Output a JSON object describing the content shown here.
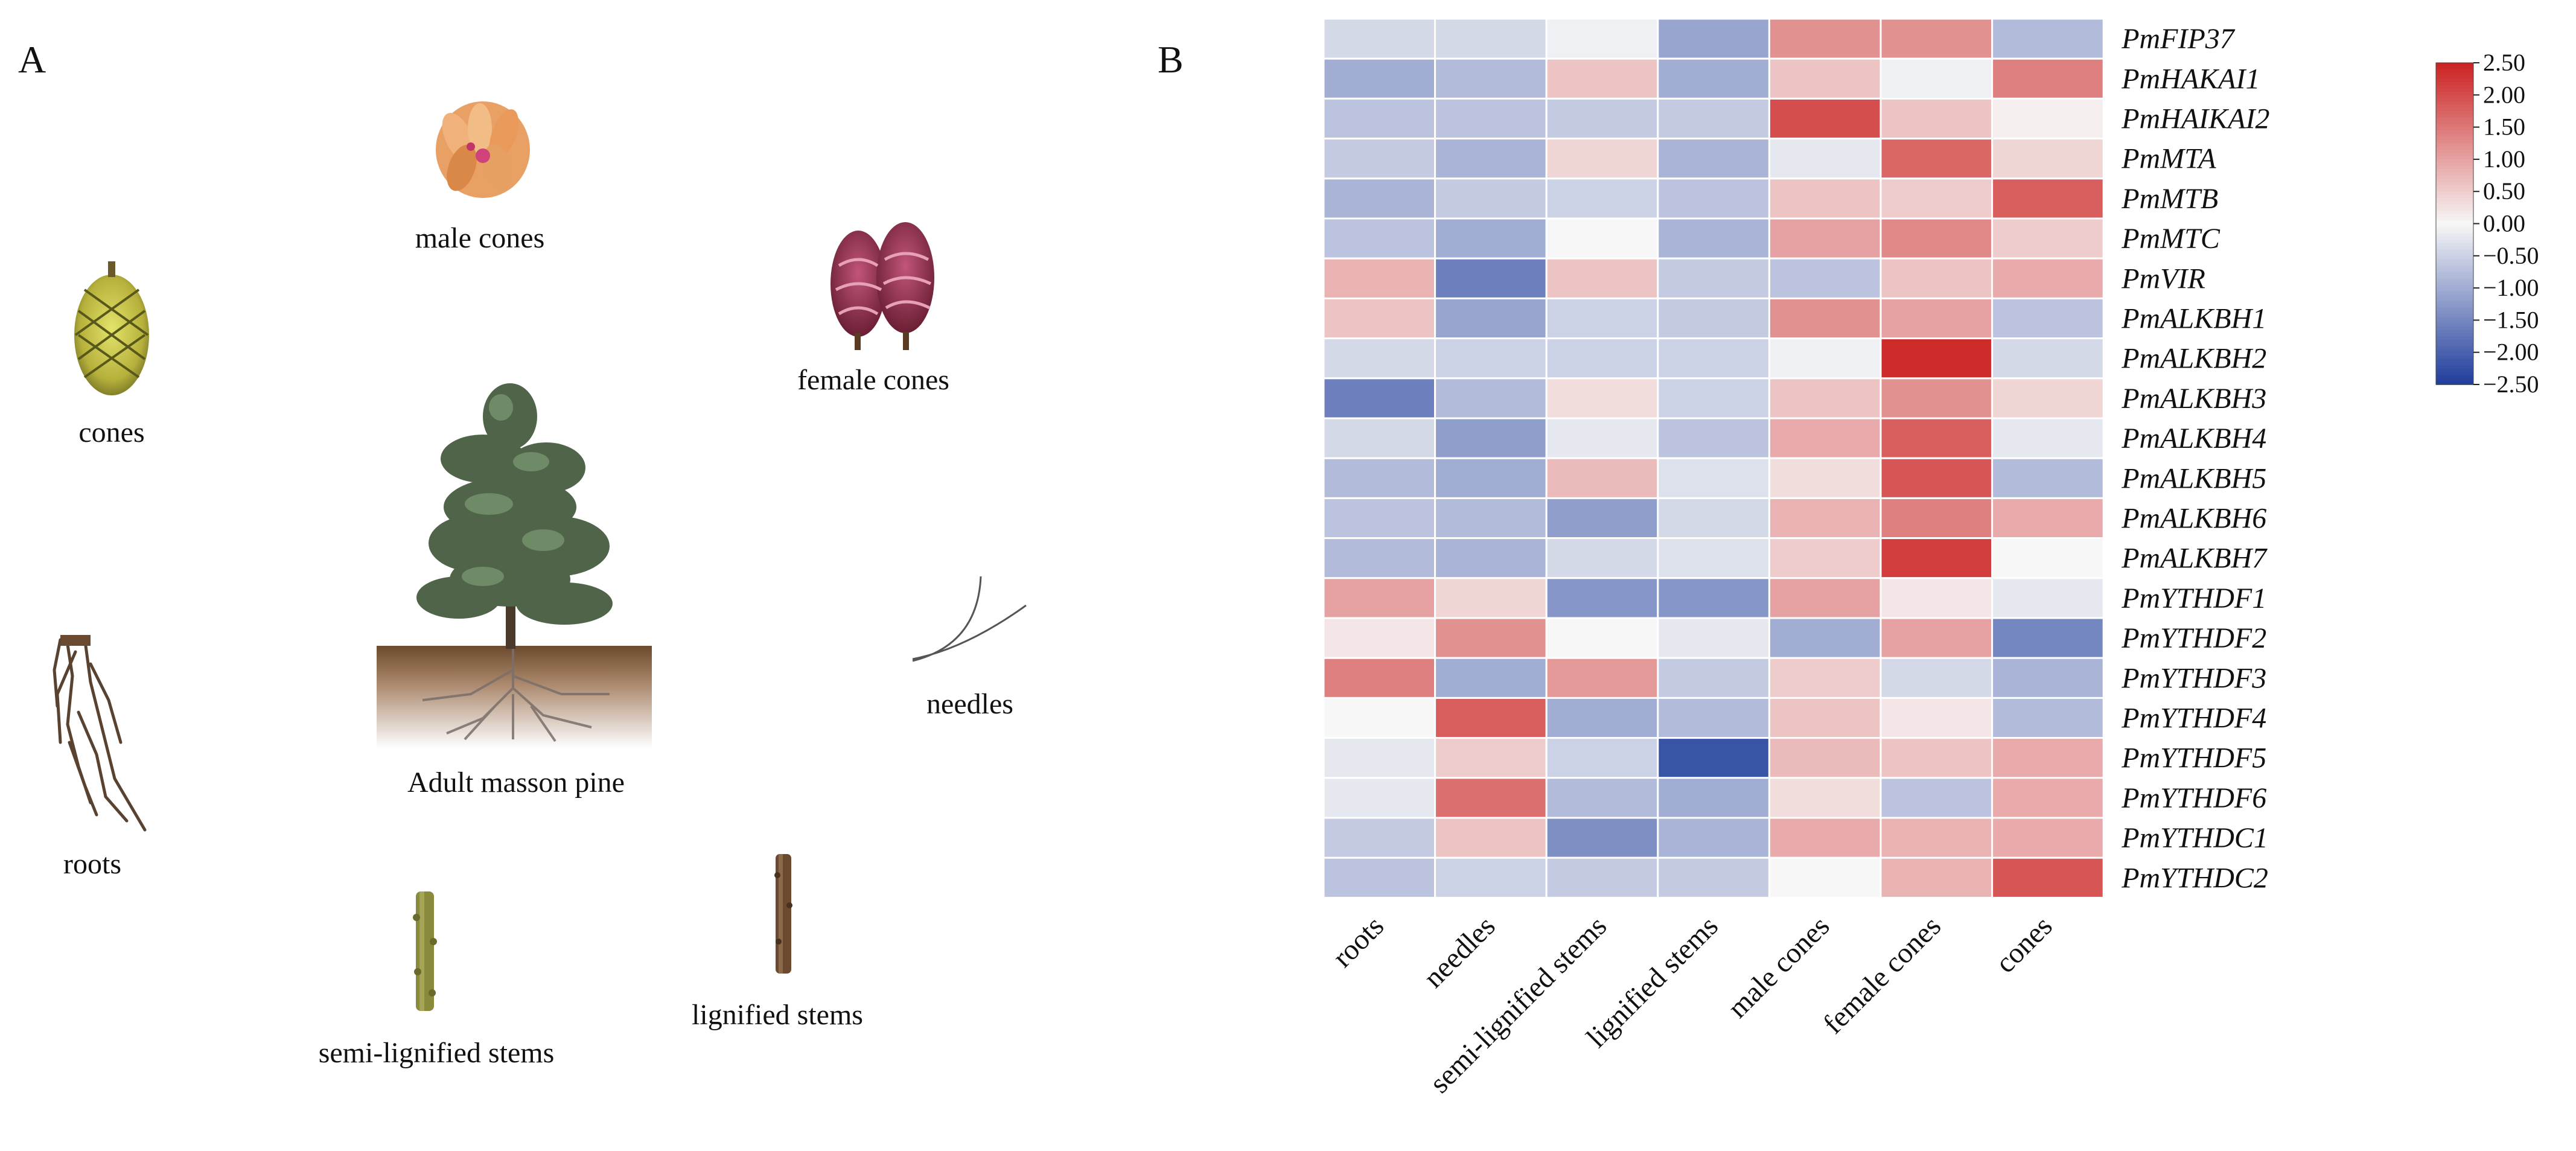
{
  "panels": {
    "a": "A",
    "b": "B"
  },
  "panel_a": {
    "labels": {
      "male_cones": "male cones",
      "female_cones": "female cones",
      "cones": "cones",
      "adult_pine": "Adult masson pine",
      "roots": "roots",
      "needles": "needles",
      "semi_lignified_stems": "semi-lignified stems",
      "lignified_stems": "lignified stems"
    }
  },
  "chart_data": {
    "type": "heatmap",
    "title": "",
    "columns": [
      "roots",
      "needles",
      "semi-lignified stems",
      "lignified stems",
      "male cones",
      "female cones",
      "cones"
    ],
    "rows": [
      "PmFIP37",
      "PmHAKAI1",
      "PmHAIKAI2",
      "PmMTA",
      "PmMTB",
      "PmMTC",
      "PmVIR",
      "PmALKBH1",
      "PmALKBH2",
      "PmALKBH3",
      "PmALKBH4",
      "PmALKBH5",
      "PmALKBH6",
      "PmALKBH7",
      "PmYTHDF1",
      "PmYTHDF2",
      "PmYTHDF3",
      "PmYTHDF4",
      "PmYTHDF5",
      "PmYTHDF6",
      "PmYTHDC1",
      "PmYTHDC2"
    ],
    "values": [
      [
        -0.4,
        -0.4,
        -0.1,
        -1.1,
        1.2,
        1.2,
        -0.8
      ],
      [
        -1.0,
        -0.8,
        0.6,
        -1.0,
        0.6,
        -0.1,
        1.4
      ],
      [
        -0.7,
        -0.7,
        -0.6,
        -0.6,
        2.0,
        0.6,
        0.1
      ],
      [
        -0.6,
        -0.9,
        0.4,
        -0.9,
        -0.2,
        1.7,
        0.4
      ],
      [
        -0.9,
        -0.6,
        -0.5,
        -0.7,
        0.6,
        0.5,
        1.8
      ],
      [
        -0.7,
        -1.0,
        0.0,
        -0.9,
        1.0,
        1.3,
        0.5
      ],
      [
        0.8,
        -1.6,
        0.6,
        -0.6,
        -0.7,
        0.6,
        0.9
      ],
      [
        0.6,
        -1.1,
        -0.5,
        -0.6,
        1.2,
        1.0,
        -0.7
      ],
      [
        -0.4,
        -0.5,
        -0.5,
        -0.5,
        -0.1,
        2.4,
        -0.4
      ],
      [
        -1.6,
        -0.8,
        0.3,
        -0.5,
        0.6,
        1.2,
        0.4
      ],
      [
        -0.4,
        -1.2,
        -0.2,
        -0.7,
        0.9,
        1.8,
        -0.2
      ],
      [
        -0.8,
        -1.0,
        0.7,
        -0.3,
        0.3,
        1.9,
        -0.8
      ],
      [
        -0.7,
        -0.8,
        -1.2,
        -0.4,
        0.8,
        1.4,
        0.9
      ],
      [
        -0.8,
        -0.9,
        -0.4,
        -0.3,
        0.5,
        2.2,
        0.0
      ],
      [
        1.0,
        0.4,
        -1.3,
        -1.3,
        1.0,
        0.2,
        -0.2
      ],
      [
        0.2,
        1.2,
        0.0,
        -0.2,
        -1.0,
        1.0,
        -1.5
      ],
      [
        1.4,
        -1.0,
        1.1,
        -0.6,
        0.5,
        -0.4,
        -0.9
      ],
      [
        0.0,
        1.8,
        -1.0,
        -0.8,
        0.6,
        0.2,
        -0.8
      ],
      [
        -0.2,
        0.5,
        -0.5,
        -2.2,
        0.7,
        0.6,
        0.9
      ],
      [
        -0.2,
        1.6,
        -0.8,
        -1.0,
        0.3,
        -0.7,
        0.9
      ],
      [
        -0.6,
        0.6,
        -1.4,
        -0.9,
        0.9,
        0.8,
        0.9
      ],
      [
        -0.7,
        -0.5,
        -0.6,
        -0.6,
        0.0,
        0.8,
        1.9
      ]
    ],
    "vmin": -2.5,
    "vmax": 2.5,
    "colormap": "coolwarm",
    "colorbar": {
      "ticks": [
        2.5,
        2.0,
        1.5,
        1.0,
        0.5,
        0.0,
        -0.5,
        -1.0,
        -1.5,
        -2.0,
        -2.5
      ],
      "tick_labels": [
        "2.50",
        "2.00",
        "1.50",
        "1.00",
        "0.50",
        "0.00",
        "−0.50",
        "−1.00",
        "−1.50",
        "−2.00",
        "−2.50"
      ]
    },
    "colors": {
      "low": "#1f3d9c",
      "mid": "#f7f7f7",
      "high": "#cc2222"
    }
  }
}
